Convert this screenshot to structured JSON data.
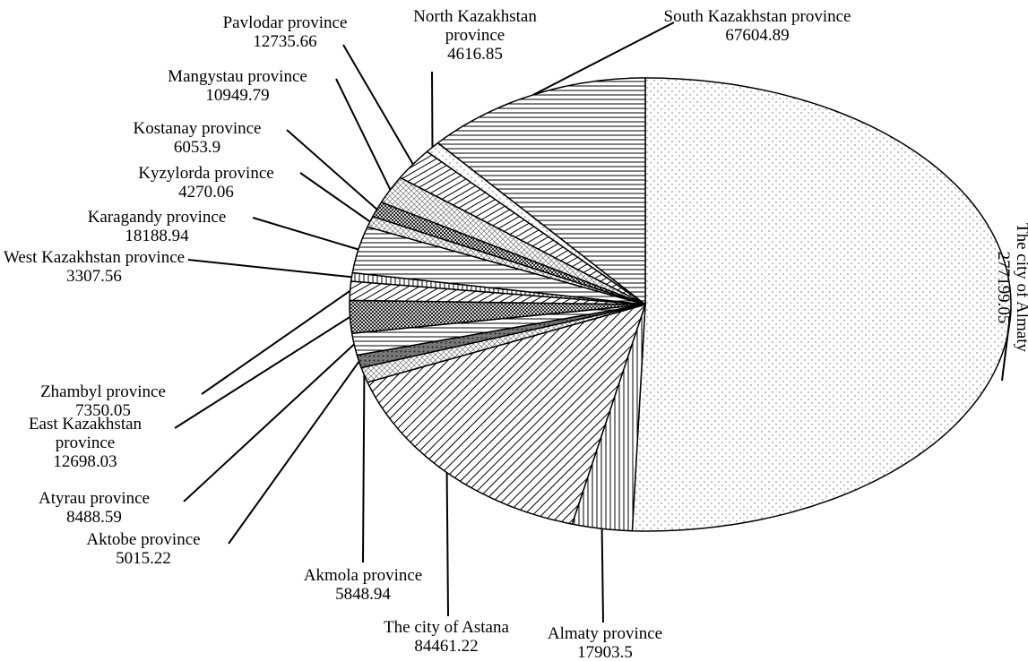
{
  "chart_data": {
    "type": "pie",
    "categories": [
      "The city of Almaty",
      "Almaty province",
      "The city of Astana",
      "Akmola province",
      "Aktobe province",
      "Atyrau province",
      "East Kazakhstan province",
      "Zhambyl province",
      "West Kazakhstan province",
      "Karagandy province",
      "Kyzylorda province",
      "Kostanay province",
      "Mangystau province",
      "Pavlodar province",
      "North Kazakhstan province",
      "South Kazakhstan province"
    ],
    "values": [
      277199.05,
      17903.5,
      84461.22,
      5848.94,
      5015.22,
      8488.59,
      12698.03,
      7350.05,
      3307.56,
      18188.94,
      4270.06,
      6053.9,
      10949.79,
      12735.66,
      4616.85,
      67604.89
    ]
  }
}
